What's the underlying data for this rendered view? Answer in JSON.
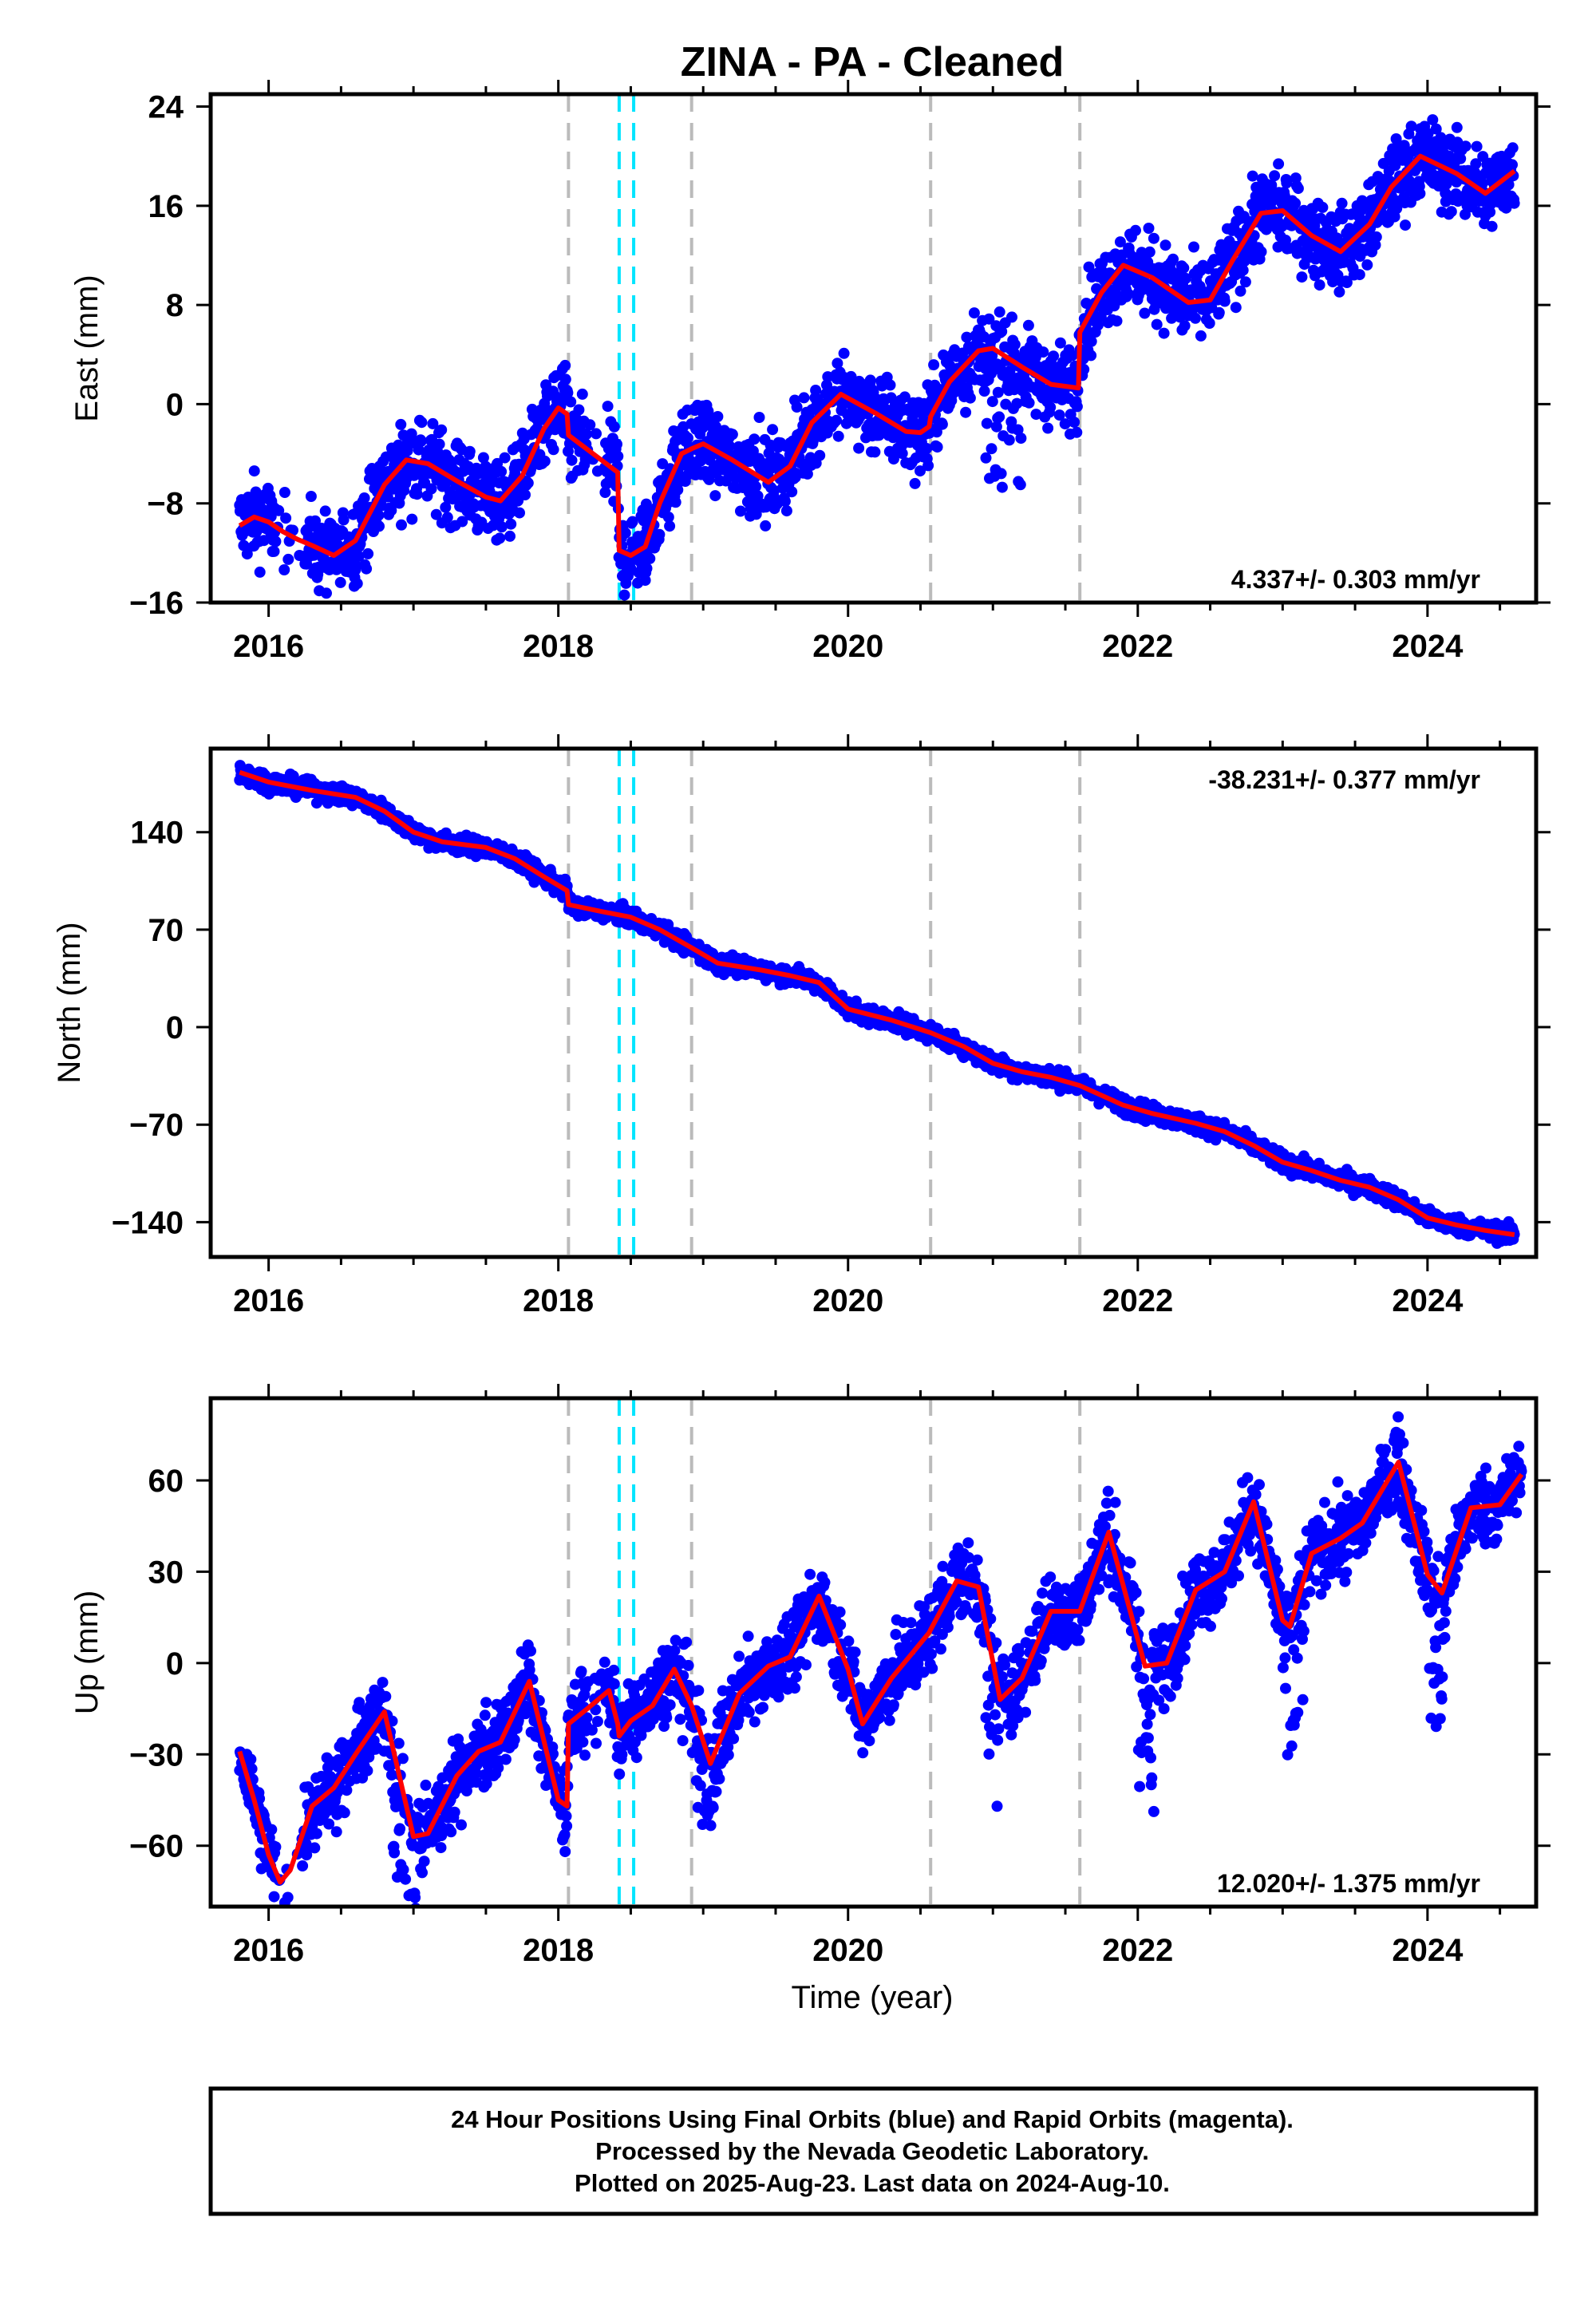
{
  "title": "ZINA  - PA - Cleaned",
  "xlabel": "Time (year)",
  "colors": {
    "data_points": "#0000ff",
    "model_line": "#ff0000",
    "equipment_change": "#bbbbbb",
    "earthquake": "#00e5ff"
  },
  "footer": {
    "line1": "24 Hour Positions Using Final Orbits (blue) and Rapid Orbits (magenta).",
    "line2": "Processed by the Nevada Geodetic Laboratory.",
    "line3": "Plotted on 2025-Aug-23. Last data on 2024-Aug-10."
  },
  "chart_data": [
    {
      "type": "scatter",
      "component": "East",
      "ylabel": "East (mm)",
      "rate_label": "4.337+/- 0.303 mm/yr",
      "rate_position": "bottom-right",
      "xlim": [
        2015.6,
        2024.75
      ],
      "ylim": [
        -16,
        25
      ],
      "xticks": [
        2016,
        2018,
        2020,
        2022,
        2024
      ],
      "yticks": [
        -16,
        -8,
        0,
        8,
        16,
        24
      ],
      "ytick_labels": [
        "−16",
        "−8",
        "0",
        "8",
        "16",
        "24"
      ],
      "gray_dashed_lines": [
        2018.07,
        2018.92,
        2020.57,
        2021.6
      ],
      "cyan_dashed_lines": [
        2018.42,
        2018.52
      ],
      "model": {
        "x": [
          2015.8,
          2015.9,
          2016.0,
          2016.1,
          2016.2,
          2016.3,
          2016.45,
          2016.6,
          2016.8,
          2016.95,
          2017.1,
          2017.3,
          2017.5,
          2017.6,
          2017.75,
          2017.9,
          2018.0,
          2018.06,
          2018.07,
          2018.41,
          2018.42,
          2018.5,
          2018.6,
          2018.7,
          2018.85,
          2018.92,
          2019.0,
          2019.2,
          2019.45,
          2019.6,
          2019.75,
          2019.95,
          2020.2,
          2020.4,
          2020.5,
          2020.56,
          2020.57,
          2020.7,
          2020.9,
          2021.0,
          2021.2,
          2021.4,
          2021.59,
          2021.6,
          2021.75,
          2021.9,
          2022.1,
          2022.35,
          2022.5,
          2022.65,
          2022.85,
          2023.0,
          2023.2,
          2023.4,
          2023.6,
          2023.75,
          2023.95,
          2024.2,
          2024.4,
          2024.6
        ],
        "y": [
          -9.8,
          -9.1,
          -9.5,
          -10.3,
          -10.9,
          -11.4,
          -12.2,
          -11.0,
          -6.5,
          -4.5,
          -4.8,
          -6.2,
          -7.5,
          -7.8,
          -5.8,
          -2.0,
          -0.3,
          -0.8,
          -2.5,
          -5.5,
          -11.8,
          -12.2,
          -11.5,
          -8.0,
          -4.0,
          -3.6,
          -3.2,
          -4.5,
          -6.3,
          -5.0,
          -1.5,
          0.8,
          -0.8,
          -2.2,
          -2.3,
          -1.8,
          -1.0,
          1.8,
          4.3,
          4.5,
          3.0,
          1.6,
          1.3,
          5.8,
          9.0,
          11.2,
          10.2,
          8.2,
          8.4,
          11.5,
          15.4,
          15.6,
          13.6,
          12.3,
          14.5,
          17.5,
          20.0,
          18.6,
          17.0,
          18.8
        ]
      }
    },
    {
      "type": "scatter",
      "component": "North",
      "ylabel": "North (mm)",
      "rate_label": "-38.231+/- 0.377 mm/yr",
      "rate_position": "top-right",
      "xlim": [
        2015.6,
        2024.75
      ],
      "ylim": [
        -165,
        200
      ],
      "xticks": [
        2016,
        2018,
        2020,
        2022,
        2024
      ],
      "yticks": [
        -140,
        -70,
        0,
        70,
        140
      ],
      "ytick_labels": [
        "−140",
        "−70",
        "0",
        "70",
        "140"
      ],
      "gray_dashed_lines": [
        2018.07,
        2018.92,
        2020.57,
        2021.6
      ],
      "cyan_dashed_lines": [
        2018.42,
        2018.52
      ],
      "model": {
        "x": [
          2015.8,
          2016.0,
          2016.3,
          2016.6,
          2016.8,
          2017.0,
          2017.2,
          2017.5,
          2017.7,
          2017.9,
          2018.06,
          2018.07,
          2018.3,
          2018.5,
          2018.7,
          2018.92,
          2019.1,
          2019.4,
          2019.6,
          2019.8,
          2020.0,
          2020.3,
          2020.57,
          2020.8,
          2021.0,
          2021.2,
          2021.4,
          2021.6,
          2021.9,
          2022.1,
          2022.4,
          2022.6,
          2022.8,
          2023.0,
          2023.2,
          2023.4,
          2023.6,
          2023.8,
          2024.0,
          2024.2,
          2024.4,
          2024.6
        ],
        "y": [
          183,
          176,
          170,
          165,
          155,
          140,
          133,
          129,
          121,
          108,
          98,
          88,
          83,
          79,
          70,
          57,
          46,
          41,
          37,
          32,
          13,
          5,
          -4,
          -14,
          -26,
          -32,
          -36,
          -42,
          -56,
          -62,
          -69,
          -75,
          -85,
          -97,
          -103,
          -110,
          -115,
          -124,
          -137,
          -142,
          -146,
          -149
        ]
      }
    },
    {
      "type": "scatter",
      "component": "Up",
      "ylabel": "Up (mm)",
      "rate_label": "12.020+/- 1.375 mm/yr",
      "rate_position": "bottom-right",
      "xlim": [
        2015.6,
        2024.75
      ],
      "ylim": [
        -80,
        87
      ],
      "xticks": [
        2016,
        2018,
        2020,
        2022,
        2024
      ],
      "yticks": [
        -60,
        -30,
        0,
        30,
        60
      ],
      "ytick_labels": [
        "−60",
        "−30",
        "0",
        "30",
        "60"
      ],
      "gray_dashed_lines": [
        2018.07,
        2018.92,
        2020.57,
        2021.6
      ],
      "cyan_dashed_lines": [
        2018.42,
        2018.52
      ],
      "model": {
        "x": [
          2015.8,
          2015.9,
          2016.0,
          2016.08,
          2016.15,
          2016.3,
          2016.45,
          2016.6,
          2016.8,
          2017.0,
          2017.1,
          2017.3,
          2017.45,
          2017.6,
          2017.8,
          2018.0,
          2018.06,
          2018.07,
          2018.2,
          2018.35,
          2018.41,
          2018.42,
          2018.5,
          2018.65,
          2018.8,
          2018.92,
          2019.05,
          2019.25,
          2019.45,
          2019.6,
          2019.8,
          2020.0,
          2020.1,
          2020.3,
          2020.56,
          2020.57,
          2020.75,
          2020.9,
          2021.05,
          2021.2,
          2021.4,
          2021.6,
          2021.8,
          2022.05,
          2022.2,
          2022.4,
          2022.6,
          2022.8,
          2023.0,
          2023.05,
          2023.2,
          2023.4,
          2023.55,
          2023.8,
          2024.0,
          2024.1,
          2024.3,
          2024.5,
          2024.65
        ],
        "y": [
          -29,
          -45,
          -63,
          -72,
          -68,
          -47,
          -41,
          -30,
          -16,
          -57,
          -56,
          -37,
          -29,
          -26,
          -6,
          -45,
          -47,
          -20,
          -15,
          -9,
          -20,
          -24,
          -19,
          -14,
          -2,
          -14,
          -33,
          -10,
          -1,
          2,
          22,
          -2,
          -20,
          -5,
          10,
          11,
          27,
          25,
          -12,
          -5,
          17,
          17,
          43,
          -1,
          0,
          24,
          30,
          53,
          14,
          12,
          36,
          41,
          46,
          66,
          29,
          23,
          51,
          52,
          62
        ]
      }
    }
  ]
}
